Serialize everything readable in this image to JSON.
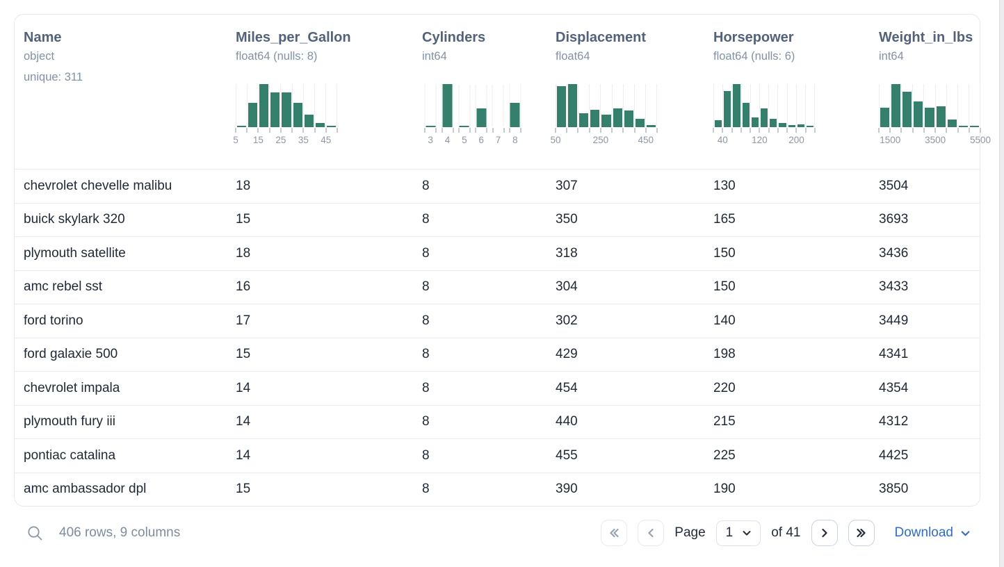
{
  "table": {
    "columns": [
      {
        "name": "Name",
        "dtype": "object",
        "meta": "unique: 311",
        "hist": null
      },
      {
        "name": "Miles_per_Gallon",
        "dtype": "float64 (nulls: 8)",
        "hist": {
          "style": "bins",
          "values": [
            0.03,
            0.56,
            1.0,
            0.81,
            0.81,
            0.57,
            0.29,
            0.09,
            0.02
          ],
          "labels": [
            "5",
            "15",
            "25",
            "35",
            "45"
          ],
          "label_edges": [
            0,
            2,
            4,
            6,
            8
          ]
        }
      },
      {
        "name": "Cylinders",
        "dtype": "int64",
        "hist": {
          "style": "spaced",
          "values": [
            0.04,
            1.0,
            0.03,
            0.44,
            0,
            0.57
          ],
          "labels": [
            "3",
            "4",
            "5",
            "6",
            "7",
            "8"
          ]
        }
      },
      {
        "name": "Displacement",
        "dtype": "float64",
        "hist": {
          "style": "bins",
          "values": [
            0.95,
            1.0,
            0.32,
            0.41,
            0.29,
            0.43,
            0.38,
            0.19,
            0.05
          ],
          "labels": [
            "50",
            "250",
            "450"
          ],
          "label_edges": [
            0,
            4,
            8
          ]
        }
      },
      {
        "name": "Horsepower",
        "dtype": "float64 (nulls: 6)",
        "hist": {
          "style": "bins",
          "values": [
            0.16,
            0.84,
            1.0,
            0.57,
            0.22,
            0.43,
            0.19,
            0.09,
            0.05,
            0.06,
            0.02
          ],
          "labels": [
            "40",
            "120",
            "200"
          ],
          "label_edges": [
            1,
            5,
            9
          ]
        }
      },
      {
        "name": "Weight_in_lbs",
        "dtype": "int64",
        "hist": {
          "style": "bins",
          "values": [
            0.45,
            1.0,
            0.83,
            0.6,
            0.45,
            0.48,
            0.17,
            0.02,
            0.02
          ],
          "labels": [
            "1500",
            "3500",
            "5500"
          ],
          "label_edges": [
            1,
            5,
            9
          ]
        }
      }
    ],
    "rows": [
      [
        "chevrolet chevelle malibu",
        "18",
        "8",
        "307",
        "130",
        "3504"
      ],
      [
        "buick skylark 320",
        "15",
        "8",
        "350",
        "165",
        "3693"
      ],
      [
        "plymouth satellite",
        "18",
        "8",
        "318",
        "150",
        "3436"
      ],
      [
        "amc rebel sst",
        "16",
        "8",
        "304",
        "150",
        "3433"
      ],
      [
        "ford torino",
        "17",
        "8",
        "302",
        "140",
        "3449"
      ],
      [
        "ford galaxie 500",
        "15",
        "8",
        "429",
        "198",
        "4341"
      ],
      [
        "chevrolet impala",
        "14",
        "8",
        "454",
        "220",
        "4354"
      ],
      [
        "plymouth fury iii",
        "14",
        "8",
        "440",
        "215",
        "4312"
      ],
      [
        "pontiac catalina",
        "14",
        "8",
        "455",
        "225",
        "4425"
      ],
      [
        "amc ambassador dpl",
        "15",
        "8",
        "390",
        "190",
        "3850"
      ]
    ]
  },
  "footer": {
    "summary": "406 rows, 9 columns",
    "pagination": {
      "page_label": "Page",
      "page_value": "1",
      "of_label": "of 41"
    },
    "download_label": "Download"
  },
  "icons": {
    "search": "magnifier",
    "first_page": "double-chevron-left",
    "prev_page": "chevron-left",
    "next_page": "chevron-right",
    "last_page": "double-chevron-right",
    "page_select_caret": "chevron-down",
    "download_caret": "chevron-down"
  },
  "colors": {
    "histogram_bar": "#35806c",
    "header_text": "#52627c",
    "muted_text": "#8191a7",
    "cell_text": "#1e2836",
    "link_blue": "#2e6bd4"
  }
}
